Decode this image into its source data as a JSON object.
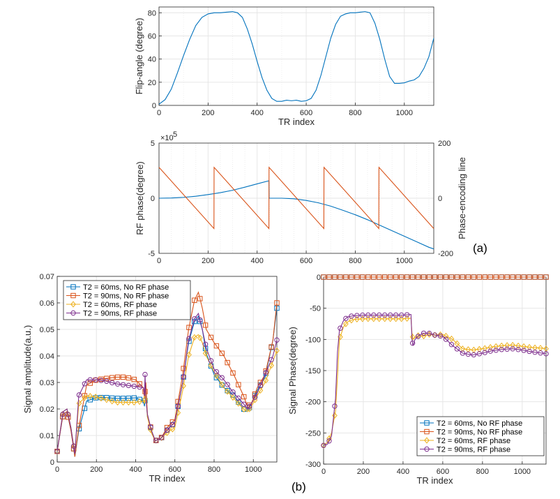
{
  "chart_data": [
    {
      "id": "flip",
      "type": "line",
      "xlabel": "TR index",
      "ylabel": "Flip-angle (degree)",
      "xlim": [
        0,
        1120
      ],
      "ylim": [
        0,
        85
      ],
      "xticks": [
        0,
        200,
        400,
        600,
        800,
        1000
      ],
      "yticks": [
        0,
        20,
        40,
        60,
        80
      ],
      "series": [
        {
          "name": "Flip angle",
          "color": "#0072BD",
          "x": [
            0,
            25,
            50,
            75,
            100,
            125,
            150,
            175,
            200,
            225,
            250,
            275,
            300,
            320,
            340,
            360,
            380,
            400,
            420,
            440,
            460,
            480,
            500,
            520,
            540,
            560,
            580,
            600,
            620,
            640,
            660,
            680,
            700,
            720,
            740,
            760,
            780,
            800,
            820,
            840,
            860,
            880,
            900,
            920,
            940,
            960,
            980,
            1000,
            1020,
            1040,
            1060,
            1080,
            1100,
            1120
          ],
          "y": [
            1,
            5,
            14,
            28,
            43,
            57,
            69,
            76,
            79,
            80,
            80,
            80.5,
            81,
            80,
            76,
            66,
            53,
            38,
            24,
            13,
            6,
            3.5,
            3.5,
            4.5,
            4,
            4.5,
            3.5,
            4,
            6,
            13,
            26,
            42,
            58,
            70,
            77,
            79,
            80,
            80,
            80.5,
            81,
            80,
            71,
            57,
            40,
            25,
            19,
            19,
            19.5,
            21,
            22,
            25,
            32,
            42,
            58
          ]
        }
      ]
    },
    {
      "id": "rfphase",
      "type": "line",
      "xlabel": "",
      "ylabel": "RF phase(degree)",
      "y2label": "Phase-encoding line",
      "exponent_label": "×10",
      "exponent_power": "5",
      "xlim": [
        0,
        1120
      ],
      "ylim": [
        -5,
        5
      ],
      "y2lim": [
        -200,
        200
      ],
      "xticks": [
        0,
        200,
        400,
        600,
        800,
        1000
      ],
      "yticks": [
        -5,
        0,
        5
      ],
      "y2ticks": [
        -200,
        0,
        200
      ],
      "series": [
        {
          "name": "RF phase",
          "axis": "left",
          "color": "#0072BD",
          "x": [
            0,
            50,
            100,
            150,
            200,
            250,
            300,
            350,
            400,
            448,
            449,
            500,
            550,
            600,
            650,
            700,
            750,
            800,
            850,
            900,
            950,
            1000,
            1050,
            1100,
            1120
          ],
          "y": [
            0,
            0.02,
            0.08,
            0.18,
            0.33,
            0.5,
            0.72,
            1.0,
            1.3,
            1.58,
            0,
            0,
            -0.05,
            -0.2,
            -0.42,
            -0.72,
            -1.1,
            -1.5,
            -1.95,
            -2.45,
            -2.95,
            -3.45,
            -3.95,
            -4.45,
            -4.6
          ]
        },
        {
          "name": "Phase-encoding line",
          "axis": "right",
          "color": "#D95319",
          "x": [
            0,
            224,
            224.5,
            448,
            448.5,
            672,
            672.5,
            896,
            896.5,
            1120
          ],
          "y": [
            112,
            -110,
            112,
            -110,
            112,
            -110,
            112,
            -110,
            112,
            -110
          ]
        }
      ]
    },
    {
      "id": "amp",
      "type": "line",
      "xlabel": "TR index",
      "ylabel": "Signal amplitude(a.u.)",
      "xlim": [
        0,
        1120
      ],
      "ylim": [
        0,
        0.07
      ],
      "xticks": [
        0,
        200,
        400,
        600,
        800,
        1000
      ],
      "yticks": [
        0,
        0.01,
        0.02,
        0.03,
        0.04,
        0.05,
        0.06,
        0.07
      ],
      "ytick_labels": [
        "0",
        "0.01",
        "0.02",
        "0.03",
        "0.04",
        "0.05",
        "0.06",
        "0.07"
      ],
      "legend_position": "top-left",
      "series": [
        {
          "name": "T2 = 60ms, No RF phase",
          "color": "#0072BD",
          "marker": "square",
          "x": [
            0,
            30,
            50,
            70,
            90,
            110,
            150,
            200,
            250,
            300,
            350,
            400,
            440,
            445,
            452,
            460,
            480,
            500,
            530,
            560,
            600,
            640,
            670,
            700,
            720,
            740,
            760,
            800,
            850,
            900,
            950,
            970,
            990,
            1020,
            1060,
            1100,
            1120
          ],
          "y": [
            0.004,
            0.018,
            0.019,
            0.012,
            0.002,
            0.012,
            0.023,
            0.0243,
            0.0243,
            0.024,
            0.024,
            0.0242,
            0.023,
            0.021,
            0.026,
            0.017,
            0.012,
            0.008,
            0.009,
            0.012,
            0.015,
            0.03,
            0.045,
            0.053,
            0.055,
            0.05,
            0.041,
            0.033,
            0.028,
            0.025,
            0.02,
            0.019,
            0.022,
            0.027,
            0.032,
            0.046,
            0.058
          ]
        },
        {
          "name": "T2 = 90ms, No RF phase",
          "color": "#D95319",
          "marker": "square",
          "x": [
            0,
            30,
            50,
            70,
            90,
            110,
            150,
            200,
            250,
            300,
            350,
            400,
            440,
            445,
            452,
            460,
            480,
            500,
            530,
            560,
            600,
            640,
            670,
            700,
            720,
            740,
            760,
            800,
            850,
            900,
            950,
            970,
            990,
            1020,
            1060,
            1100,
            1120
          ],
          "y": [
            0.004,
            0.018,
            0.019,
            0.012,
            0.002,
            0.013,
            0.029,
            0.031,
            0.0315,
            0.032,
            0.032,
            0.031,
            0.028,
            0.024,
            0.03,
            0.018,
            0.012,
            0.008,
            0.009,
            0.013,
            0.016,
            0.033,
            0.05,
            0.061,
            0.064,
            0.058,
            0.05,
            0.045,
            0.04,
            0.033,
            0.025,
            0.021,
            0.022,
            0.028,
            0.033,
            0.046,
            0.06
          ]
        },
        {
          "name": "T2 = 60ms, RF phase",
          "color": "#EDB120",
          "marker": "diamond",
          "x": [
            0,
            30,
            50,
            70,
            90,
            110,
            150,
            200,
            250,
            300,
            350,
            400,
            440,
            445,
            452,
            460,
            480,
            500,
            530,
            560,
            600,
            640,
            670,
            700,
            720,
            740,
            760,
            800,
            850,
            900,
            950,
            970,
            990,
            1020,
            1060,
            1100,
            1120
          ],
          "y": [
            0.004,
            0.019,
            0.02,
            0.013,
            0.003,
            0.022,
            0.025,
            0.0245,
            0.0235,
            0.0225,
            0.0225,
            0.0225,
            0.023,
            0.022,
            0.026,
            0.017,
            0.011,
            0.008,
            0.009,
            0.011,
            0.013,
            0.027,
            0.04,
            0.047,
            0.048,
            0.045,
            0.04,
            0.034,
            0.028,
            0.024,
            0.02,
            0.019,
            0.021,
            0.025,
            0.03,
            0.038,
            0.042
          ]
        },
        {
          "name": "T2 = 90ms, RF phase",
          "color": "#7E2F8E",
          "marker": "circle",
          "x": [
            0,
            30,
            50,
            70,
            90,
            110,
            150,
            200,
            250,
            300,
            350,
            400,
            440,
            445,
            448,
            452,
            460,
            480,
            500,
            530,
            560,
            600,
            640,
            670,
            700,
            720,
            740,
            760,
            800,
            850,
            900,
            950,
            970,
            990,
            1020,
            1060,
            1100,
            1120
          ],
          "y": [
            0.004,
            0.019,
            0.02,
            0.013,
            0.003,
            0.025,
            0.031,
            0.031,
            0.0305,
            0.0295,
            0.029,
            0.0285,
            0.028,
            0.025,
            0.033,
            0.024,
            0.018,
            0.012,
            0.008,
            0.009,
            0.012,
            0.015,
            0.03,
            0.046,
            0.054,
            0.056,
            0.05,
            0.043,
            0.035,
            0.031,
            0.026,
            0.022,
            0.02,
            0.022,
            0.026,
            0.033,
            0.04,
            0.046
          ]
        }
      ]
    },
    {
      "id": "phase",
      "type": "line",
      "xlabel": "TR index",
      "ylabel": "Signal Phase(degree)",
      "xlim": [
        0,
        1120
      ],
      "ylim": [
        -300,
        0
      ],
      "xticks": [
        0,
        200,
        400,
        600,
        800,
        1000
      ],
      "yticks": [
        -300,
        -250,
        -200,
        -150,
        -100,
        -50,
        0
      ],
      "legend_position": "bottom-right",
      "series": [
        {
          "name": "T2 = 60ms, No RF phase",
          "color": "#0072BD",
          "marker": "square",
          "x": [
            0,
            1120
          ],
          "y": [
            0,
            0
          ]
        },
        {
          "name": "T2 = 90ms, No RF phase",
          "color": "#D95319",
          "marker": "square",
          "x": [
            0,
            1120
          ],
          "y": [
            0,
            0
          ]
        },
        {
          "name": "T2 = 60ms, RF phase",
          "color": "#EDB120",
          "marker": "diamond",
          "x": [
            0,
            20,
            40,
            60,
            70,
            80,
            100,
            120,
            150,
            200,
            250,
            300,
            350,
            400,
            440,
            445,
            450,
            460,
            480,
            500,
            530,
            560,
            600,
            650,
            700,
            750,
            800,
            850,
            900,
            950,
            1000,
            1050,
            1100,
            1120
          ],
          "y": [
            -270,
            -265,
            -250,
            -215,
            -160,
            -100,
            -80,
            -72,
            -68,
            -67,
            -67,
            -67,
            -67,
            -67,
            -66,
            -90,
            -100,
            -97,
            -93,
            -95,
            -92,
            -93,
            -92,
            -100,
            -115,
            -117,
            -115,
            -112,
            -110,
            -109,
            -111,
            -113,
            -114,
            -115
          ]
        },
        {
          "name": "T2 = 90ms, RF phase",
          "color": "#7E2F8E",
          "marker": "circle",
          "x": [
            0,
            20,
            40,
            60,
            70,
            80,
            100,
            120,
            150,
            200,
            250,
            300,
            350,
            400,
            440,
            445,
            450,
            460,
            480,
            500,
            530,
            560,
            600,
            650,
            700,
            750,
            800,
            850,
            900,
            950,
            1000,
            1050,
            1100,
            1120
          ],
          "y": [
            -270,
            -268,
            -255,
            -195,
            -120,
            -85,
            -70,
            -64,
            -62,
            -61,
            -61,
            -61,
            -61,
            -61,
            -60,
            -100,
            -110,
            -100,
            -94,
            -90,
            -90,
            -93,
            -95,
            -110,
            -122,
            -125,
            -122,
            -118,
            -116,
            -115,
            -117,
            -120,
            -122,
            -123
          ]
        }
      ]
    }
  ],
  "panel_labels": {
    "a": "(a)",
    "b": "(b)"
  }
}
